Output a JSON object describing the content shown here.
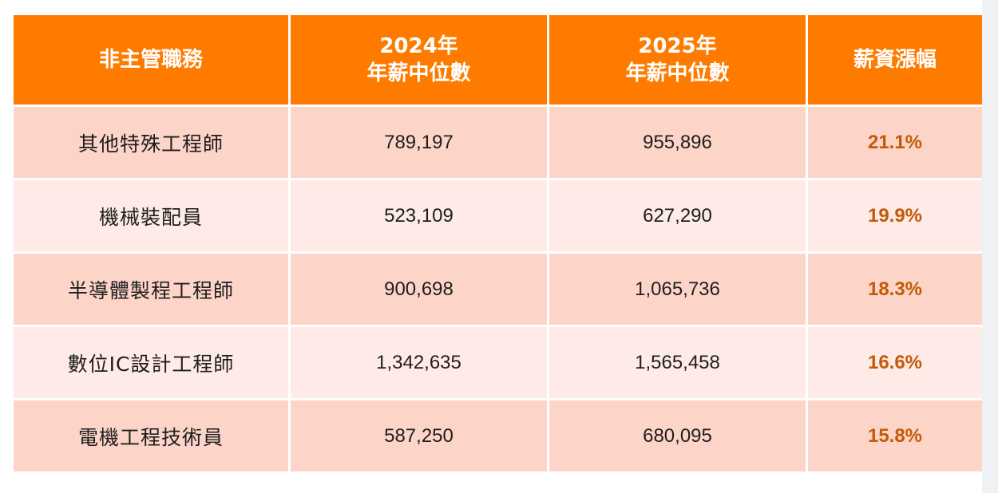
{
  "colors": {
    "header_bg": "#ff7b00",
    "row_odd_bg": "#fdd4c8",
    "row_even_bg": "#feeae6",
    "growth_text": "#c45a08"
  },
  "chart_data": {
    "type": "table",
    "columns": [
      {
        "line1": "非主管職務",
        "line2": ""
      },
      {
        "line1": "2024年",
        "line2": "年薪中位數"
      },
      {
        "line1": "2025年",
        "line2": "年薪中位數"
      },
      {
        "line1": "薪資漲幅",
        "line2": ""
      }
    ],
    "rows": [
      {
        "job": "其他特殊工程師",
        "salary_2024": "789,197",
        "salary_2025": "955,896",
        "growth": "21.1%"
      },
      {
        "job": "機械裝配員",
        "salary_2024": "523,109",
        "salary_2025": "627,290",
        "growth": "19.9%"
      },
      {
        "job": "半導體製程工程師",
        "salary_2024": "900,698",
        "salary_2025": "1,065,736",
        "growth": "18.3%"
      },
      {
        "job": "數位IC設計工程師",
        "salary_2024": "1,342,635",
        "salary_2025": "1,565,458",
        "growth": "16.6%"
      },
      {
        "job": "電機工程技術員",
        "salary_2024": "587,250",
        "salary_2025": "680,095",
        "growth": "15.8%"
      }
    ]
  }
}
